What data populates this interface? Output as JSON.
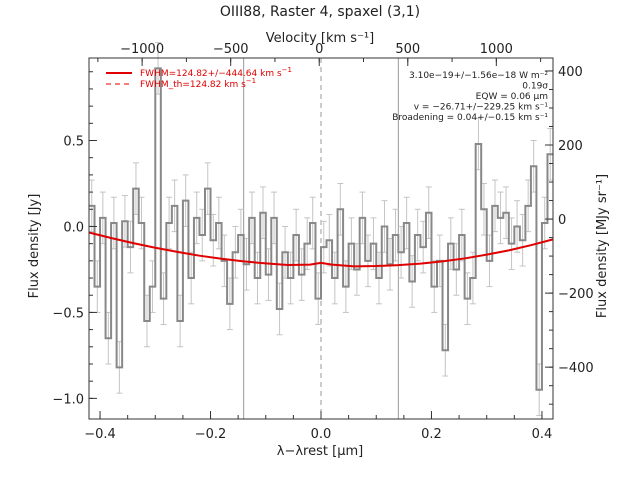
{
  "chart_data": {
    "type": "line",
    "title": "OIII88, Raster 4, spaxel (3,1)",
    "xlabel": "λ−λrest [µm]",
    "ylabel_left": "Flux density [Jy]",
    "ylabel_right": "Flux density [MJy sr⁻¹]",
    "xlabel_top": "Velocity [km s⁻¹]",
    "xlim": [
      -0.42,
      0.42
    ],
    "ylim": [
      -1.12,
      0.98
    ],
    "ylim_right": [
      -540,
      435
    ],
    "vlim_top": [
      -1300,
      1320
    ],
    "xticks": [
      {
        "v": -0.4,
        "label": "−0.4"
      },
      {
        "v": -0.2,
        "label": "−0.2"
      },
      {
        "v": 0.0,
        "label": "0.0"
      },
      {
        "v": 0.2,
        "label": "0.2"
      },
      {
        "v": 0.4,
        "label": "0.4"
      }
    ],
    "yticks_left": [
      {
        "v": -1.0,
        "label": "−1.0"
      },
      {
        "v": -0.5,
        "label": "−0.5"
      },
      {
        "v": 0.0,
        "label": "0.0"
      },
      {
        "v": 0.5,
        "label": "0.5"
      }
    ],
    "yticks_right": [
      {
        "v": -400,
        "label": "−400"
      },
      {
        "v": -200,
        "label": "−200"
      },
      {
        "v": 0,
        "label": "0"
      },
      {
        "v": 200,
        "label": "200"
      },
      {
        "v": 400,
        "label": "400"
      }
    ],
    "xticks_top": [
      {
        "v": -1000,
        "label": "−1000"
      },
      {
        "v": -500,
        "label": "−500"
      },
      {
        "v": 0,
        "label": "0"
      },
      {
        "v": 500,
        "label": "500"
      },
      {
        "v": 1000,
        "label": "1000"
      }
    ],
    "vertical_lines": [
      {
        "x": -0.14,
        "style": "solid"
      },
      {
        "x": 0.0,
        "style": "dashed"
      },
      {
        "x": 0.14,
        "style": "solid"
      }
    ],
    "series": [
      {
        "name": "spectrum",
        "color": "#888888",
        "style": "histogram-steps-with-errorbars",
        "x": [
          -0.415,
          -0.405,
          -0.395,
          -0.385,
          -0.375,
          -0.365,
          -0.355,
          -0.345,
          -0.335,
          -0.325,
          -0.315,
          -0.305,
          -0.295,
          -0.285,
          -0.275,
          -0.265,
          -0.255,
          -0.245,
          -0.235,
          -0.225,
          -0.215,
          -0.205,
          -0.195,
          -0.185,
          -0.175,
          -0.165,
          -0.155,
          -0.145,
          -0.135,
          -0.125,
          -0.115,
          -0.105,
          -0.095,
          -0.085,
          -0.075,
          -0.065,
          -0.055,
          -0.045,
          -0.035,
          -0.025,
          -0.015,
          -0.005,
          0.005,
          0.015,
          0.025,
          0.035,
          0.045,
          0.055,
          0.065,
          0.075,
          0.085,
          0.095,
          0.105,
          0.115,
          0.125,
          0.135,
          0.145,
          0.155,
          0.165,
          0.175,
          0.185,
          0.195,
          0.205,
          0.215,
          0.225,
          0.235,
          0.245,
          0.255,
          0.265,
          0.275,
          0.285,
          0.295,
          0.305,
          0.315,
          0.325,
          0.335,
          0.345,
          0.355,
          0.365,
          0.375,
          0.385,
          0.395,
          0.405,
          0.415
        ],
        "y": [
          0.12,
          -0.35,
          0.05,
          -0.65,
          0.02,
          -0.82,
          0.03,
          -0.12,
          0.22,
          0.02,
          -0.55,
          -0.35,
          0.92,
          -0.42,
          0.02,
          0.12,
          -0.55,
          0.15,
          -0.3,
          0.05,
          -0.05,
          0.22,
          -0.08,
          0.02,
          -0.2,
          -0.45,
          -0.15,
          -0.05,
          -0.22,
          0.05,
          -0.3,
          0.08,
          -0.28,
          0.05,
          -0.48,
          -0.15,
          -0.3,
          -0.05,
          -0.28,
          -0.1,
          0.02,
          -0.42,
          -0.12,
          -0.08,
          -0.3,
          0.1,
          -0.35,
          -0.1,
          -0.25,
          0.05,
          -0.2,
          -0.1,
          -0.3,
          0.0,
          -0.22,
          -0.05,
          -0.15,
          0.02,
          -0.32,
          -0.05,
          -0.12,
          0.08,
          -0.35,
          -0.2,
          -0.72,
          -0.1,
          -0.25,
          -0.05,
          -0.42,
          -0.3,
          0.48,
          0.1,
          -0.2,
          0.12,
          0.05,
          0.08,
          -0.1,
          0.0,
          -0.08,
          0.12,
          0.35,
          -0.95,
          0.02,
          0.42
        ],
        "yerr": [
          0.15,
          0.15,
          0.15,
          0.15,
          0.15,
          0.15,
          0.15,
          0.15,
          0.15,
          0.15,
          0.15,
          0.15,
          0.15,
          0.15,
          0.15,
          0.15,
          0.15,
          0.15,
          0.15,
          0.15,
          0.15,
          0.15,
          0.15,
          0.15,
          0.15,
          0.15,
          0.15,
          0.15,
          0.15,
          0.15,
          0.15,
          0.15,
          0.15,
          0.15,
          0.15,
          0.15,
          0.15,
          0.15,
          0.15,
          0.15,
          0.15,
          0.15,
          0.15,
          0.15,
          0.15,
          0.15,
          0.15,
          0.15,
          0.15,
          0.15,
          0.15,
          0.15,
          0.15,
          0.15,
          0.15,
          0.15,
          0.15,
          0.15,
          0.15,
          0.15,
          0.15,
          0.15,
          0.15,
          0.15,
          0.15,
          0.15,
          0.15,
          0.15,
          0.15,
          0.15,
          0.15,
          0.15,
          0.15,
          0.15,
          0.15,
          0.15,
          0.15,
          0.15,
          0.15,
          0.15,
          0.15,
          0.15,
          0.15,
          0.15
        ]
      },
      {
        "name": "FWHM=124.82+/−444.64 km s⁻¹",
        "color": "#e00000",
        "style": "solid",
        "x": [
          -0.42,
          -0.38,
          -0.34,
          -0.3,
          -0.26,
          -0.22,
          -0.18,
          -0.14,
          -0.1,
          -0.06,
          -0.02,
          0.0,
          0.02,
          0.06,
          0.1,
          0.14,
          0.18,
          0.22,
          0.26,
          0.3,
          0.34,
          0.38,
          0.42
        ],
        "y": [
          -0.035,
          -0.067,
          -0.097,
          -0.124,
          -0.148,
          -0.17,
          -0.188,
          -0.203,
          -0.215,
          -0.224,
          -0.222,
          -0.212,
          -0.222,
          -0.232,
          -0.23,
          -0.225,
          -0.216,
          -0.203,
          -0.186,
          -0.164,
          -0.139,
          -0.109,
          -0.075
        ]
      },
      {
        "name": "FWHM_th=124.82 km s⁻¹",
        "color": "#e00000",
        "style": "dashed",
        "x": [],
        "y": []
      }
    ],
    "legend": {
      "placement": "top-left",
      "entries": [
        {
          "label": "FWHM=124.82+/−444.64 km s",
          "sup": "−1",
          "style": "solid",
          "color": "#e00000"
        },
        {
          "label": "FWHM_th=124.82 km s",
          "sup": "−1",
          "style": "dashed",
          "color": "#e00000"
        }
      ]
    },
    "annotations": {
      "placement": "top-right",
      "lines": [
        "3.10e−19+/−1.56e−18 W m⁻²",
        "0.19σ",
        "EQW = 0.06 µm",
        "v = −26.71+/−229.25 km s⁻¹",
        "Broadening = 0.04+/−0.15 km s⁻¹"
      ]
    }
  }
}
